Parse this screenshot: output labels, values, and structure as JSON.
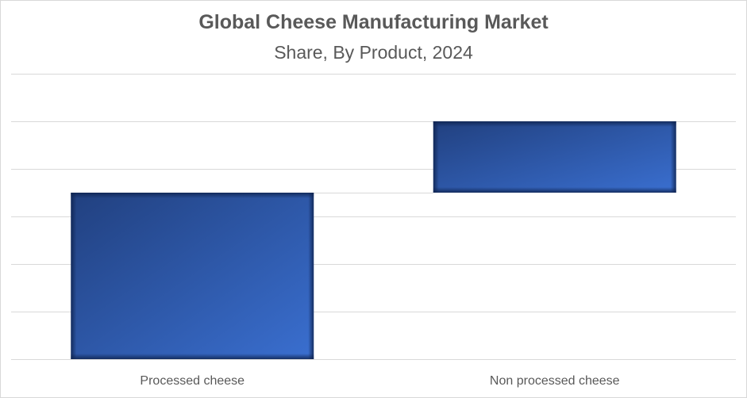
{
  "chart_data": {
    "type": "bar",
    "subtype": "waterfall",
    "title": "Global Cheese Manufacturing Market",
    "subtitle": "Share, By Product, 2024",
    "categories": [
      "Processed cheese",
      "Non processed cheese"
    ],
    "values": [
      70,
      30
    ],
    "xlabel": "",
    "ylabel": "",
    "ylim": [
      0,
      120
    ],
    "y_gridline_step": 20,
    "y_tick_labels_shown": false,
    "grid": true,
    "legend": "none",
    "bar_color": "#2e5bb0",
    "bar_color_dark": "#1f3f82",
    "bar_color_light": "#3a6fd0"
  }
}
